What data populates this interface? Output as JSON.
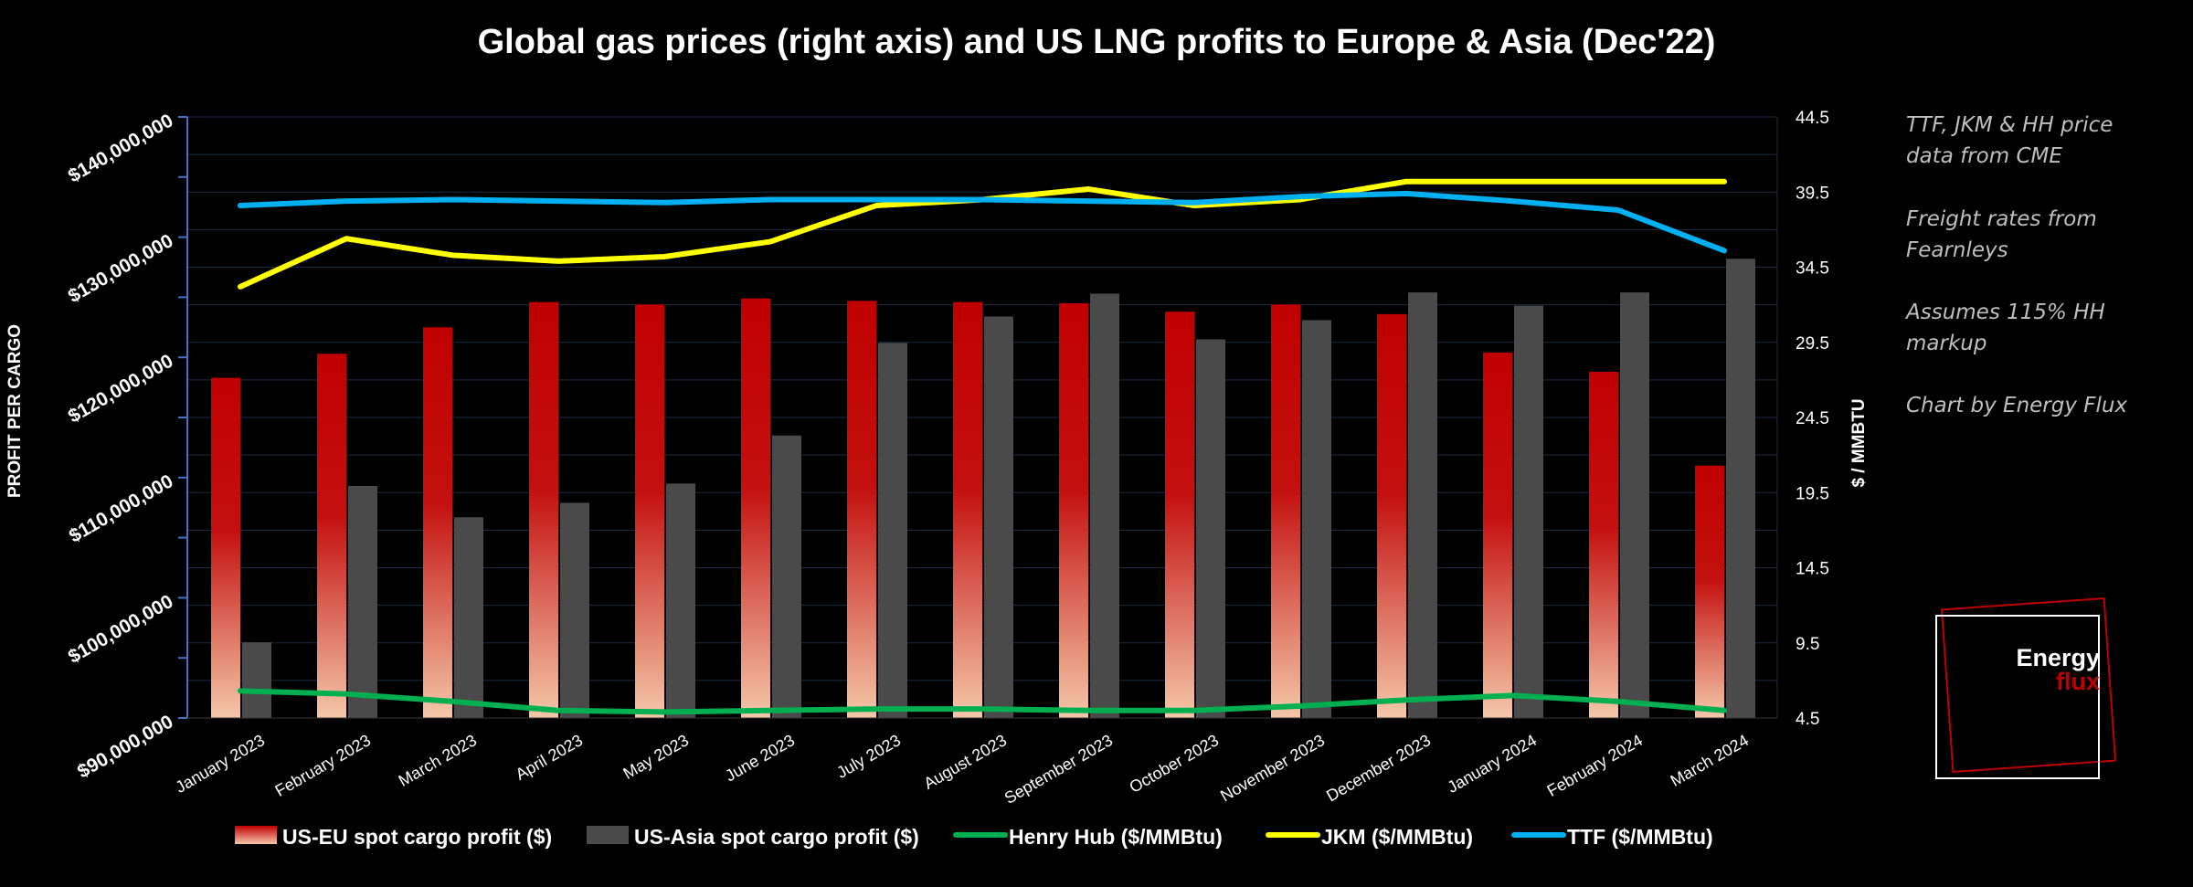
{
  "chart_data": {
    "type": "bar",
    "title": "Global gas prices (right axis) and US LNG profits to Europe & Asia (Dec'22)",
    "categories": [
      "January 2023",
      "February 2023",
      "March 2023",
      "April 2023",
      "May 2023",
      "June 2023",
      "July 2023",
      "August 2023",
      "September 2023",
      "October 2023",
      "November 2023",
      "December 2023",
      "January 2024",
      "February 2024",
      "March 2024"
    ],
    "ylabel_left": "PROFIT PER CARGO",
    "ylabel_right": "$ / MMBTU",
    "ylim_left": [
      90000000,
      140000000
    ],
    "ylim_right": [
      4.5,
      44.5
    ],
    "yticks_left": [
      "$90,000,000",
      "$100,000,000",
      "$110,000,000",
      "$120,000,000",
      "$130,000,000",
      "$140,000,000"
    ],
    "yticks_right": [
      "4.5",
      "9.5",
      "14.5",
      "19.5",
      "24.5",
      "29.5",
      "34.5",
      "39.5",
      "44.5"
    ],
    "bar_series": [
      {
        "name": "US-EU spot cargo profit ($)",
        "axis": "left",
        "values": [
          118300000,
          120300000,
          122500000,
          124600000,
          124400000,
          124900000,
          124700000,
          124600000,
          124500000,
          123800000,
          124400000,
          123600000,
          120400000,
          118800000,
          111000000
        ]
      },
      {
        "name": "US-Asia spot cargo profit ($)",
        "axis": "left",
        "values": [
          96300000,
          109300000,
          106700000,
          107900000,
          109500000,
          113500000,
          121200000,
          123400000,
          125300000,
          121500000,
          123100000,
          125400000,
          124300000,
          125400000,
          128200000
        ]
      }
    ],
    "line_series": [
      {
        "name": "Henry Hub ($/MMBtu)",
        "axis": "right",
        "values": [
          6.3,
          6.1,
          5.6,
          5.0,
          4.9,
          5.0,
          5.1,
          5.1,
          5.0,
          5.0,
          5.3,
          5.7,
          6.0,
          5.6,
          5.0
        ]
      },
      {
        "name": "JKM ($/MMBtu)",
        "axis": "right",
        "values": [
          33.2,
          36.4,
          35.3,
          34.9,
          35.2,
          36.2,
          38.6,
          39.0,
          39.7,
          38.6,
          39.0,
          40.2,
          40.2,
          40.2,
          40.2
        ]
      },
      {
        "name": "TTF ($/MMBtu)",
        "axis": "right",
        "values": [
          38.6,
          38.9,
          39.0,
          38.9,
          38.8,
          39.0,
          39.0,
          39.0,
          38.9,
          38.8,
          39.2,
          39.4,
          38.9,
          38.3,
          35.6
        ]
      }
    ],
    "legend_position": "bottom",
    "grid": true
  },
  "colors": {
    "us_eu": "#c00000",
    "us_asia": "#4a4a4a",
    "henry_hub": "#00b050",
    "jkm": "#ffff00",
    "ttf": "#00b0f0",
    "axis": "#4472c4"
  },
  "notes": [
    "TTF, JKM & HH price data from CME",
    "Freight rates from Fearnleys",
    "Assumes 115% HH markup",
    "Chart by Energy Flux"
  ],
  "logo": {
    "line1": "Energy",
    "line2": "flux"
  }
}
